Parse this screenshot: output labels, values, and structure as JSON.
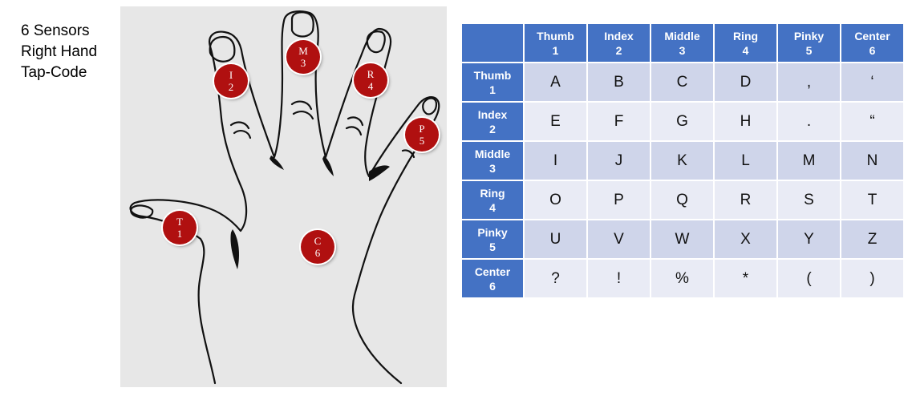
{
  "caption": {
    "line1": "6 Sensors",
    "line2": "Right Hand",
    "line3": "Tap-Code"
  },
  "sensors": [
    {
      "letter": "T",
      "number": "1"
    },
    {
      "letter": "I",
      "number": "2"
    },
    {
      "letter": "M",
      "number": "3"
    },
    {
      "letter": "R",
      "number": "4"
    },
    {
      "letter": "P",
      "number": "5"
    },
    {
      "letter": "C",
      "number": "6"
    }
  ],
  "table": {
    "columns": [
      {
        "name": "Thumb",
        "number": "1"
      },
      {
        "name": "Index",
        "number": "2"
      },
      {
        "name": "Middle",
        "number": "3"
      },
      {
        "name": "Ring",
        "number": "4"
      },
      {
        "name": "Pinky",
        "number": "5"
      },
      {
        "name": "Center",
        "number": "6"
      }
    ],
    "rows": [
      {
        "name": "Thumb",
        "number": "1",
        "cells": [
          "A",
          "B",
          "C",
          "D",
          ",",
          "‘"
        ]
      },
      {
        "name": "Index",
        "number": "2",
        "cells": [
          "E",
          "F",
          "G",
          "H",
          ".",
          "“"
        ]
      },
      {
        "name": "Middle",
        "number": "3",
        "cells": [
          "I",
          "J",
          "K",
          "L",
          "M",
          "N"
        ]
      },
      {
        "name": "Ring",
        "number": "4",
        "cells": [
          "O",
          "P",
          "Q",
          "R",
          "S",
          "T"
        ]
      },
      {
        "name": "Pinky",
        "number": "5",
        "cells": [
          "U",
          "V",
          "W",
          "X",
          "Y",
          "Z"
        ]
      },
      {
        "name": "Center",
        "number": "6",
        "cells": [
          "?",
          "!",
          "%",
          "*",
          "(",
          ")"
        ]
      }
    ]
  },
  "colors": {
    "header": "#4472c4",
    "row_band_dark": "#cfd5ea",
    "row_band_light": "#e9ebf5",
    "sensor": "#b01010",
    "panel": "#e7e7e7"
  }
}
